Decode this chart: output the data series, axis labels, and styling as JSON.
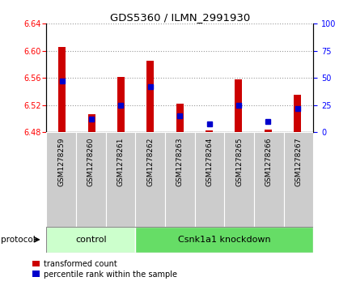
{
  "title": "GDS5360 / ILMN_2991930",
  "samples": [
    "GSM1278259",
    "GSM1278260",
    "GSM1278261",
    "GSM1278262",
    "GSM1278263",
    "GSM1278264",
    "GSM1278265",
    "GSM1278266",
    "GSM1278267"
  ],
  "transformed_counts": [
    6.605,
    6.507,
    6.561,
    6.585,
    6.522,
    6.483,
    6.558,
    6.484,
    6.535
  ],
  "percentile_ranks": [
    47,
    12,
    25,
    42,
    15,
    8,
    25,
    10,
    22
  ],
  "base_value": 6.48,
  "ylim_left": [
    6.48,
    6.64
  ],
  "ylim_right": [
    0,
    100
  ],
  "yticks_left": [
    6.48,
    6.52,
    6.56,
    6.6,
    6.64
  ],
  "yticks_right": [
    0,
    25,
    50,
    75,
    100
  ],
  "bar_color": "#cc0000",
  "percentile_color": "#0000cc",
  "control_color": "#ccffcc",
  "knockdown_color": "#66dd66",
  "tick_label_bg": "#cccccc",
  "legend_bar": "transformed count",
  "legend_percentile": "percentile rank within the sample",
  "protocol_label": "protocol",
  "n_control": 3,
  "n_knockdown": 6
}
